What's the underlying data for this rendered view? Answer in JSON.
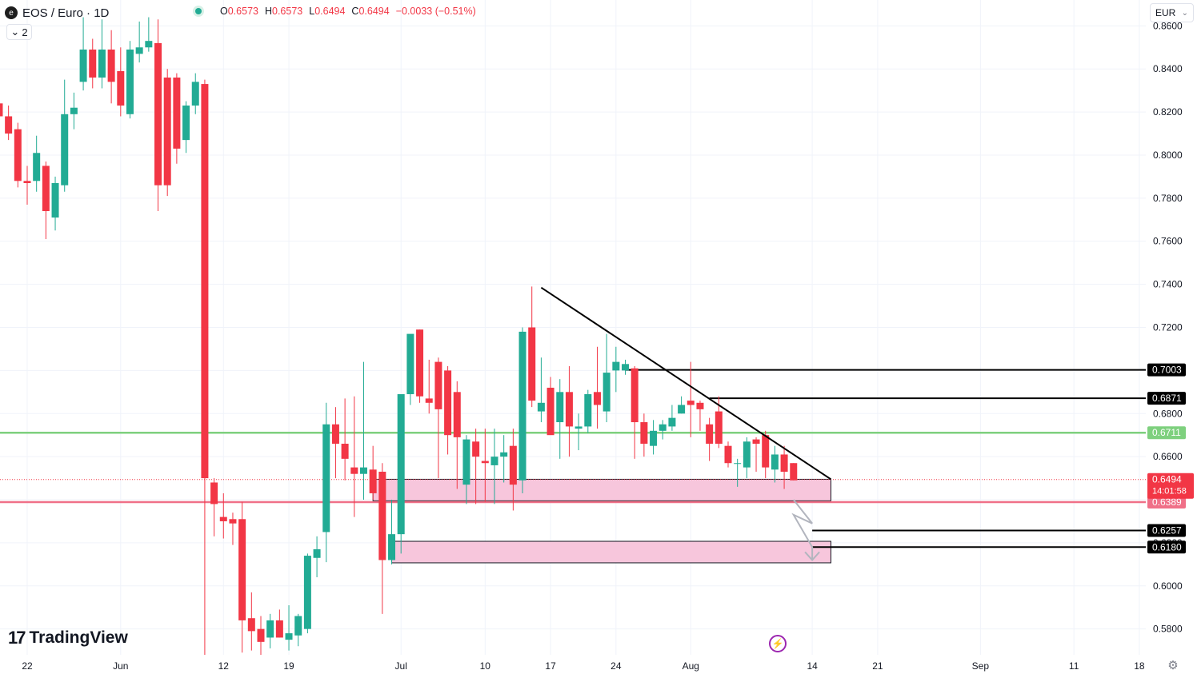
{
  "header": {
    "symbol": "EOS / Euro · 1D",
    "symbol_icon": "eos-coin-icon",
    "ohlc": {
      "o_label": "O",
      "o": "0.6573",
      "h_label": "H",
      "h": "0.6573",
      "l_label": "L",
      "l": "0.6494",
      "c_label": "C",
      "c": "0.6494",
      "change": "−0.0033 (−0.51%)"
    },
    "indicator_count": "2",
    "currency": "EUR"
  },
  "branding": {
    "logo_text": "TradingView"
  },
  "colors": {
    "up": "#22ab94",
    "down": "#f23645",
    "zone_fill": "#f7c6dc",
    "support_green": "#7ed07e",
    "support_red": "#f07088"
  },
  "chart_data": {
    "type": "candlestick",
    "interval": "1D",
    "ylim": [
      0.568,
      0.872
    ],
    "y_ticks": [
      0.58,
      0.6,
      0.62,
      0.64,
      0.66,
      0.68,
      0.7,
      0.72,
      0.74,
      0.76,
      0.78,
      0.8,
      0.82,
      0.84,
      0.86
    ],
    "y_tick_labels": [
      "0.5800",
      "0.6000",
      "0.6200",
      "0.6400",
      "0.6600",
      "0.6800",
      "0.7000",
      "0.7200",
      "0.7400",
      "0.7600",
      "0.7800",
      "0.8000",
      "0.8200",
      "0.8400",
      "0.8600"
    ],
    "x_ticks": [
      {
        "day": 0,
        "label": "22"
      },
      {
        "day": 10,
        "label": "Jun"
      },
      {
        "day": 21,
        "label": "12"
      },
      {
        "day": 28,
        "label": "19"
      },
      {
        "day": 40,
        "label": "Jul"
      },
      {
        "day": 49,
        "label": "10"
      },
      {
        "day": 56,
        "label": "17"
      },
      {
        "day": 63,
        "label": "24"
      },
      {
        "day": 71,
        "label": "Aug"
      },
      {
        "day": 84,
        "label": "14"
      },
      {
        "day": 91,
        "label": "21"
      },
      {
        "day": 102,
        "label": "Sep"
      },
      {
        "day": 112,
        "label": "11"
      },
      {
        "day": 119,
        "label": "18"
      }
    ],
    "candles": [
      [
        -3,
        0.824,
        0.829,
        0.812,
        0.818
      ],
      [
        -2,
        0.818,
        0.823,
        0.807,
        0.81
      ],
      [
        -1,
        0.812,
        0.815,
        0.785,
        0.788
      ],
      [
        0,
        0.788,
        0.795,
        0.777,
        0.787
      ],
      [
        1,
        0.788,
        0.809,
        0.783,
        0.801
      ],
      [
        2,
        0.795,
        0.797,
        0.761,
        0.774
      ],
      [
        3,
        0.771,
        0.79,
        0.765,
        0.787
      ],
      [
        4,
        0.786,
        0.835,
        0.783,
        0.819
      ],
      [
        5,
        0.819,
        0.829,
        0.812,
        0.822
      ],
      [
        6,
        0.834,
        0.864,
        0.83,
        0.849
      ],
      [
        7,
        0.849,
        0.854,
        0.831,
        0.836
      ],
      [
        8,
        0.836,
        0.863,
        0.831,
        0.849
      ],
      [
        9,
        0.849,
        0.858,
        0.824,
        0.834
      ],
      [
        10,
        0.839,
        0.85,
        0.818,
        0.823
      ],
      [
        11,
        0.819,
        0.853,
        0.817,
        0.849
      ],
      [
        12,
        0.847,
        0.862,
        0.843,
        0.85
      ],
      [
        13,
        0.85,
        0.864,
        0.848,
        0.853
      ],
      [
        14,
        0.852,
        0.863,
        0.774,
        0.786
      ],
      [
        15,
        0.836,
        0.84,
        0.781,
        0.786
      ],
      [
        16,
        0.836,
        0.838,
        0.796,
        0.803
      ],
      [
        17,
        0.807,
        0.825,
        0.801,
        0.823
      ],
      [
        18,
        0.823,
        0.838,
        0.819,
        0.834
      ],
      [
        19,
        0.833,
        0.835,
        0.568,
        0.65
      ],
      [
        20,
        0.648,
        0.65,
        0.623,
        0.638
      ],
      [
        21,
        0.632,
        0.643,
        0.622,
        0.63
      ],
      [
        22,
        0.631,
        0.634,
        0.619,
        0.629
      ],
      [
        23,
        0.631,
        0.639,
        0.569,
        0.584
      ],
      [
        24,
        0.585,
        0.597,
        0.57,
        0.579
      ],
      [
        25,
        0.58,
        0.586,
        0.568,
        0.574
      ],
      [
        26,
        0.576,
        0.587,
        0.571,
        0.584
      ],
      [
        27,
        0.584,
        0.589,
        0.576,
        0.576
      ],
      [
        28,
        0.575,
        0.591,
        0.57,
        0.578
      ],
      [
        29,
        0.577,
        0.587,
        0.572,
        0.586
      ],
      [
        30,
        0.58,
        0.615,
        0.578,
        0.614
      ],
      [
        31,
        0.613,
        0.623,
        0.604,
        0.617
      ],
      [
        32,
        0.625,
        0.685,
        0.611,
        0.675
      ],
      [
        33,
        0.675,
        0.683,
        0.65,
        0.666
      ],
      [
        34,
        0.666,
        0.687,
        0.649,
        0.659
      ],
      [
        35,
        0.655,
        0.688,
        0.632,
        0.652
      ],
      [
        36,
        0.652,
        0.704,
        0.64,
        0.655
      ],
      [
        37,
        0.654,
        0.665,
        0.64,
        0.643
      ],
      [
        38,
        0.653,
        0.657,
        0.587,
        0.612
      ],
      [
        39,
        0.612,
        0.64,
        0.61,
        0.624
      ],
      [
        40,
        0.624,
        0.688,
        0.615,
        0.689
      ],
      [
        41,
        0.689,
        0.715,
        0.684,
        0.717
      ],
      [
        42,
        0.719,
        0.719,
        0.685,
        0.688
      ],
      [
        43,
        0.687,
        0.705,
        0.68,
        0.685
      ],
      [
        44,
        0.704,
        0.706,
        0.65,
        0.682
      ],
      [
        45,
        0.7,
        0.702,
        0.661,
        0.67
      ],
      [
        46,
        0.69,
        0.695,
        0.645,
        0.669
      ],
      [
        47,
        0.647,
        0.67,
        0.638,
        0.668
      ],
      [
        48,
        0.667,
        0.673,
        0.638,
        0.66
      ],
      [
        49,
        0.658,
        0.673,
        0.639,
        0.657
      ],
      [
        50,
        0.656,
        0.673,
        0.638,
        0.66
      ],
      [
        51,
        0.66,
        0.67,
        0.648,
        0.662
      ],
      [
        52,
        0.665,
        0.673,
        0.635,
        0.647
      ],
      [
        53,
        0.649,
        0.72,
        0.643,
        0.718
      ],
      [
        54,
        0.72,
        0.739,
        0.683,
        0.686
      ],
      [
        55,
        0.681,
        0.706,
        0.676,
        0.685
      ],
      [
        56,
        0.692,
        0.697,
        0.671,
        0.67
      ],
      [
        57,
        0.676,
        0.696,
        0.659,
        0.69
      ],
      [
        58,
        0.69,
        0.702,
        0.66,
        0.674
      ],
      [
        59,
        0.673,
        0.68,
        0.663,
        0.674
      ],
      [
        60,
        0.674,
        0.691,
        0.671,
        0.689
      ],
      [
        61,
        0.69,
        0.711,
        0.673,
        0.684
      ],
      [
        62,
        0.681,
        0.717,
        0.676,
        0.699
      ],
      [
        63,
        0.7,
        0.711,
        0.69,
        0.704
      ],
      [
        64,
        0.7,
        0.705,
        0.698,
        0.703
      ],
      [
        65,
        0.701,
        0.702,
        0.659,
        0.676
      ],
      [
        66,
        0.676,
        0.68,
        0.66,
        0.666
      ],
      [
        67,
        0.665,
        0.677,
        0.661,
        0.672
      ],
      [
        68,
        0.672,
        0.677,
        0.668,
        0.675
      ],
      [
        69,
        0.674,
        0.684,
        0.672,
        0.678
      ],
      [
        70,
        0.68,
        0.688,
        0.68,
        0.684
      ],
      [
        71,
        0.686,
        0.704,
        0.669,
        0.684
      ],
      [
        72,
        0.685,
        0.686,
        0.672,
        0.682
      ],
      [
        73,
        0.675,
        0.678,
        0.658,
        0.666
      ],
      [
        74,
        0.681,
        0.688,
        0.664,
        0.666
      ],
      [
        75,
        0.665,
        0.667,
        0.655,
        0.657
      ],
      [
        76,
        0.657,
        0.659,
        0.646,
        0.657
      ],
      [
        77,
        0.655,
        0.669,
        0.65,
        0.667
      ],
      [
        78,
        0.668,
        0.669,
        0.653,
        0.666
      ],
      [
        79,
        0.67,
        0.672,
        0.65,
        0.655
      ],
      [
        80,
        0.654,
        0.665,
        0.648,
        0.661
      ],
      [
        81,
        0.661,
        0.665,
        0.645,
        0.653
      ],
      [
        82,
        0.657,
        0.657,
        0.649,
        0.649
      ]
    ],
    "support_zones": [
      {
        "from_day": 37,
        "to_day": 86,
        "top": 0.6495,
        "bottom": 0.6395
      },
      {
        "from_day": 39,
        "to_day": 86,
        "top": 0.6207,
        "bottom": 0.6107
      }
    ],
    "trendline": {
      "from": [
        55,
        0.7385
      ],
      "to": [
        86,
        0.6495
      ]
    },
    "horizontal_lines": [
      {
        "from_day": 64,
        "price": 0.7003,
        "label": "0.7003",
        "style": "black"
      },
      {
        "from_day": 73,
        "price": 0.6871,
        "label": "0.6871",
        "style": "black"
      },
      {
        "from_day": 84,
        "price": 0.6257,
        "label": "0.6257",
        "style": "black"
      },
      {
        "from_day": 84,
        "price": 0.618,
        "label": "0.6180",
        "style": "black"
      },
      {
        "price": 0.6711,
        "label": "0.6711",
        "style": "green"
      },
      {
        "price": 0.6389,
        "label": "0.6389",
        "style": "red"
      }
    ],
    "last_price": {
      "price": 0.6494,
      "label": "0.6494",
      "countdown": "14:01:58"
    },
    "projection_path": [
      [
        82,
        0.64
      ],
      [
        84,
        0.629
      ],
      [
        82,
        0.633
      ],
      [
        84,
        0.618
      ],
      [
        84,
        0.612
      ]
    ]
  }
}
